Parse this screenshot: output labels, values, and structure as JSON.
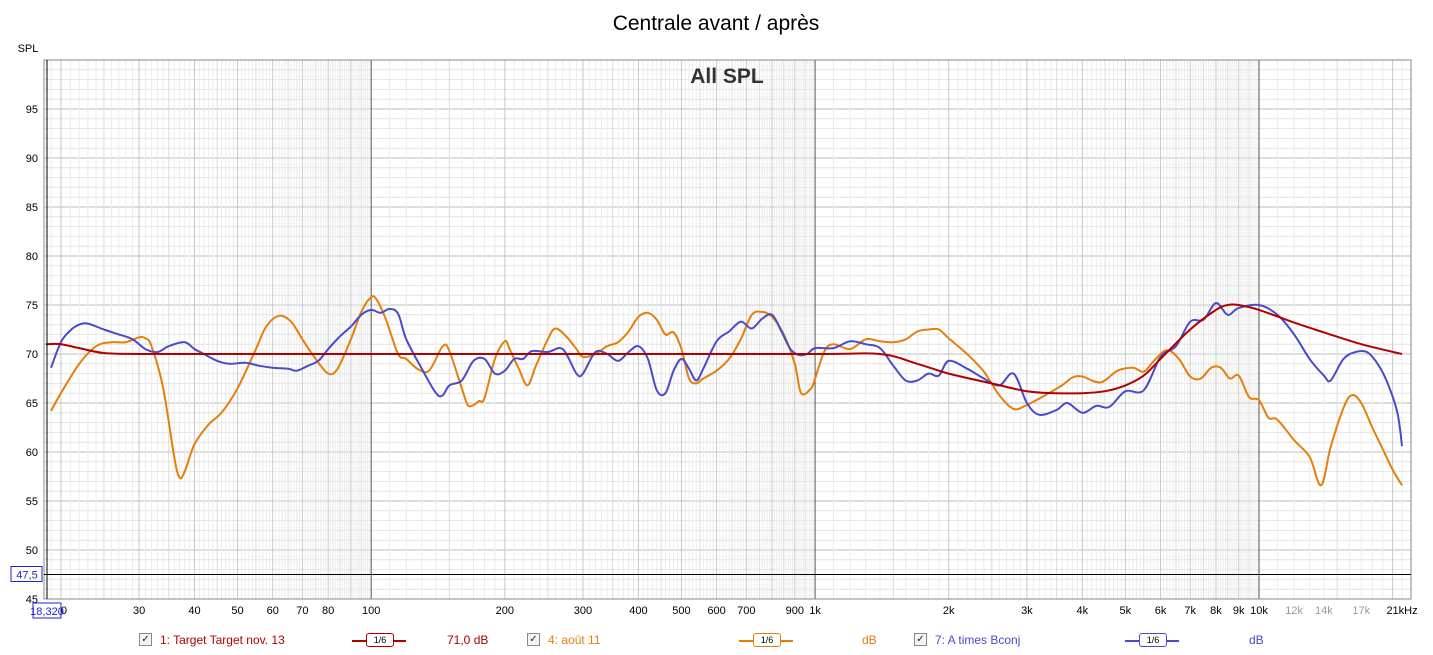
{
  "chart_data": {
    "type": "line",
    "title": "Centrale avant / après",
    "subtitle": "All SPL",
    "ylabel": "SPL",
    "xlabel": "",
    "x_scale": "log",
    "xlim": [
      18.32,
      22000
    ],
    "ylim": [
      45,
      100
    ],
    "y_ticks": [
      45,
      50,
      55,
      60,
      65,
      70,
      75,
      80,
      85,
      90,
      95
    ],
    "x_ticks": [
      {
        "v": 20,
        "label": "20"
      },
      {
        "v": 30,
        "label": "30"
      },
      {
        "v": 40,
        "label": "40"
      },
      {
        "v": 50,
        "label": "50"
      },
      {
        "v": 60,
        "label": "60"
      },
      {
        "v": 70,
        "label": "70"
      },
      {
        "v": 80,
        "label": "80"
      },
      {
        "v": 100,
        "label": "100"
      },
      {
        "v": 200,
        "label": "200"
      },
      {
        "v": 300,
        "label": "300"
      },
      {
        "v": 400,
        "label": "400"
      },
      {
        "v": 500,
        "label": "500"
      },
      {
        "v": 600,
        "label": "600"
      },
      {
        "v": 700,
        "label": "700"
      },
      {
        "v": 900,
        "label": "900"
      },
      {
        "v": 1000,
        "label": "1k"
      },
      {
        "v": 2000,
        "label": "2k"
      },
      {
        "v": 3000,
        "label": "3k"
      },
      {
        "v": 4000,
        "label": "4k"
      },
      {
        "v": 5000,
        "label": "5k"
      },
      {
        "v": 6000,
        "label": "6k"
      },
      {
        "v": 7000,
        "label": "7k"
      },
      {
        "v": 8000,
        "label": "8k"
      },
      {
        "v": 9000,
        "label": "9k"
      },
      {
        "v": 10000,
        "label": "10k"
      },
      {
        "v": 12000,
        "label": "12k"
      },
      {
        "v": 14000,
        "label": "14k"
      },
      {
        "v": 17000,
        "label": "17k"
      },
      {
        "v": 21000,
        "label": "21kHz"
      }
    ],
    "cursor_y": {
      "value": 47.5,
      "label": "47,5"
    },
    "cursor_x": {
      "label": "18,320"
    },
    "grid": true,
    "series": [
      {
        "name": "1: Target Target nov. 13",
        "color": "#b00000",
        "points": [
          [
            18.5,
            71
          ],
          [
            20,
            71
          ],
          [
            22,
            70.6
          ],
          [
            25,
            70.1
          ],
          [
            30,
            70
          ],
          [
            50,
            70
          ],
          [
            100,
            70
          ],
          [
            300,
            70
          ],
          [
            1000,
            70
          ],
          [
            1400,
            70
          ],
          [
            1700,
            69
          ],
          [
            2000,
            68
          ],
          [
            2500,
            67
          ],
          [
            3000,
            66.2
          ],
          [
            3500,
            66
          ],
          [
            4000,
            66
          ],
          [
            4500,
            66.2
          ],
          [
            5000,
            66.8
          ],
          [
            5500,
            67.8
          ],
          [
            6000,
            69.5
          ],
          [
            7000,
            72.5
          ],
          [
            8000,
            74.5
          ],
          [
            8500,
            75
          ],
          [
            9000,
            75
          ],
          [
            10000,
            74.5
          ],
          [
            12000,
            73.2
          ],
          [
            14000,
            72.2
          ],
          [
            17000,
            71
          ],
          [
            21000,
            70
          ]
        ]
      },
      {
        "name": "4: août 11",
        "color": "#e67e0a",
        "points": [
          [
            19,
            64.2
          ],
          [
            20,
            66
          ],
          [
            22,
            69
          ],
          [
            24,
            70.8
          ],
          [
            26,
            71.2
          ],
          [
            28,
            71.2
          ],
          [
            30,
            71.7
          ],
          [
            31,
            71.6
          ],
          [
            32,
            70.8
          ],
          [
            34,
            66.5
          ],
          [
            36,
            59.5
          ],
          [
            37,
            57.4
          ],
          [
            38,
            58
          ],
          [
            40,
            60.8
          ],
          [
            43,
            62.8
          ],
          [
            46,
            64
          ],
          [
            50,
            66.5
          ],
          [
            55,
            70.5
          ],
          [
            58,
            72.8
          ],
          [
            62,
            73.9
          ],
          [
            66,
            73.3
          ],
          [
            70,
            71.5
          ],
          [
            75,
            69.5
          ],
          [
            80,
            68
          ],
          [
            84,
            68.5
          ],
          [
            90,
            71.5
          ],
          [
            95,
            74.3
          ],
          [
            100,
            75.8
          ],
          [
            103,
            75.5
          ],
          [
            108,
            73.5
          ],
          [
            115,
            70
          ],
          [
            120,
            69.5
          ],
          [
            127,
            68.5
          ],
          [
            135,
            68.3
          ],
          [
            145,
            70.8
          ],
          [
            150,
            70.3
          ],
          [
            160,
            66.5
          ],
          [
            165,
            64.8
          ],
          [
            170,
            64.8
          ],
          [
            175,
            65.2
          ],
          [
            180,
            65.5
          ],
          [
            190,
            69.5
          ],
          [
            200,
            71.3
          ],
          [
            205,
            70.5
          ],
          [
            215,
            68.5
          ],
          [
            225,
            66.8
          ],
          [
            235,
            68.8
          ],
          [
            250,
            71.5
          ],
          [
            260,
            72.6
          ],
          [
            275,
            71.8
          ],
          [
            290,
            70.5
          ],
          [
            300,
            69.7
          ],
          [
            320,
            70
          ],
          [
            340,
            70.8
          ],
          [
            360,
            71.2
          ],
          [
            380,
            72.3
          ],
          [
            400,
            73.8
          ],
          [
            420,
            74.2
          ],
          [
            440,
            73.5
          ],
          [
            460,
            72
          ],
          [
            480,
            72.2
          ],
          [
            500,
            70.5
          ],
          [
            520,
            67.5
          ],
          [
            540,
            67
          ],
          [
            560,
            67.5
          ],
          [
            600,
            68.3
          ],
          [
            640,
            69.5
          ],
          [
            680,
            71.5
          ],
          [
            720,
            74
          ],
          [
            760,
            74.3
          ],
          [
            800,
            73.8
          ],
          [
            850,
            72
          ],
          [
            900,
            69
          ],
          [
            930,
            66
          ],
          [
            980,
            66.5
          ],
          [
            1000,
            67.5
          ],
          [
            1050,
            70.3
          ],
          [
            1100,
            71
          ],
          [
            1200,
            70.5
          ],
          [
            1300,
            71.5
          ],
          [
            1400,
            71.3
          ],
          [
            1500,
            71.2
          ],
          [
            1600,
            71.5
          ],
          [
            1700,
            72.3
          ],
          [
            1800,
            72.5
          ],
          [
            1900,
            72.5
          ],
          [
            2000,
            71.6
          ],
          [
            2200,
            70
          ],
          [
            2400,
            68.2
          ],
          [
            2600,
            65.8
          ],
          [
            2800,
            64.4
          ],
          [
            3000,
            64.8
          ],
          [
            3300,
            65.8
          ],
          [
            3600,
            66.8
          ],
          [
            3800,
            67.6
          ],
          [
            4000,
            67.7
          ],
          [
            4400,
            67.1
          ],
          [
            4800,
            68.3
          ],
          [
            5200,
            68.6
          ],
          [
            5500,
            68.2
          ],
          [
            5800,
            69.3
          ],
          [
            6200,
            70.4
          ],
          [
            6600,
            69.5
          ],
          [
            7000,
            67.7
          ],
          [
            7400,
            67.5
          ],
          [
            7800,
            68.6
          ],
          [
            8200,
            68.6
          ],
          [
            8600,
            67.5
          ],
          [
            9000,
            67.8
          ],
          [
            9500,
            65.6
          ],
          [
            10000,
            65.3
          ],
          [
            10500,
            63.5
          ],
          [
            11000,
            63.3
          ],
          [
            12000,
            61.2
          ],
          [
            13000,
            59.5
          ],
          [
            13800,
            56.6
          ],
          [
            14500,
            60.5
          ],
          [
            15500,
            64.5
          ],
          [
            16200,
            65.8
          ],
          [
            17000,
            65
          ],
          [
            18000,
            62.5
          ],
          [
            19000,
            60.3
          ],
          [
            20000,
            58.2
          ],
          [
            21000,
            56.6
          ]
        ]
      },
      {
        "name": "7: A times Bconj",
        "color": "#4a4acc",
        "points": [
          [
            19,
            68.6
          ],
          [
            20,
            71.2
          ],
          [
            21,
            72.4
          ],
          [
            22,
            73
          ],
          [
            23,
            73.1
          ],
          [
            25,
            72.5
          ],
          [
            27,
            72
          ],
          [
            29,
            71.5
          ],
          [
            31,
            70.5
          ],
          [
            33,
            70.2
          ],
          [
            35,
            70.8
          ],
          [
            38,
            71.2
          ],
          [
            40,
            70.5
          ],
          [
            42,
            70
          ],
          [
            45,
            69.3
          ],
          [
            48,
            69
          ],
          [
            52,
            69.1
          ],
          [
            56,
            68.8
          ],
          [
            60,
            68.6
          ],
          [
            65,
            68.5
          ],
          [
            68,
            68.3
          ],
          [
            72,
            68.8
          ],
          [
            76,
            69.3
          ],
          [
            80,
            70.5
          ],
          [
            85,
            71.8
          ],
          [
            90,
            72.8
          ],
          [
            95,
            74
          ],
          [
            100,
            74.5
          ],
          [
            105,
            74.2
          ],
          [
            110,
            74.6
          ],
          [
            115,
            74.1
          ],
          [
            120,
            71.5
          ],
          [
            130,
            68.5
          ],
          [
            140,
            66
          ],
          [
            145,
            65.8
          ],
          [
            150,
            66.8
          ],
          [
            160,
            67.3
          ],
          [
            170,
            69.3
          ],
          [
            180,
            69.5
          ],
          [
            190,
            68
          ],
          [
            200,
            68.3
          ],
          [
            210,
            69.5
          ],
          [
            220,
            69.5
          ],
          [
            230,
            70.3
          ],
          [
            250,
            70.2
          ],
          [
            270,
            70.5
          ],
          [
            290,
            68
          ],
          [
            300,
            68
          ],
          [
            320,
            70.2
          ],
          [
            340,
            70
          ],
          [
            360,
            69.3
          ],
          [
            380,
            70.2
          ],
          [
            400,
            70.8
          ],
          [
            420,
            69.5
          ],
          [
            440,
            66.3
          ],
          [
            460,
            66
          ],
          [
            480,
            68.3
          ],
          [
            500,
            69.5
          ],
          [
            520,
            68.5
          ],
          [
            540,
            67.3
          ],
          [
            560,
            68.5
          ],
          [
            600,
            71.3
          ],
          [
            640,
            72.3
          ],
          [
            680,
            73.3
          ],
          [
            720,
            72.6
          ],
          [
            760,
            73.6
          ],
          [
            800,
            74
          ],
          [
            840,
            72.3
          ],
          [
            880,
            70.5
          ],
          [
            920,
            69.9
          ],
          [
            960,
            70
          ],
          [
            1000,
            70.6
          ],
          [
            1100,
            70.6
          ],
          [
            1200,
            71.3
          ],
          [
            1300,
            71
          ],
          [
            1400,
            70.6
          ],
          [
            1500,
            68.8
          ],
          [
            1600,
            67.3
          ],
          [
            1700,
            67.3
          ],
          [
            1800,
            68
          ],
          [
            1900,
            67.8
          ],
          [
            2000,
            69.3
          ],
          [
            2200,
            68.5
          ],
          [
            2400,
            67.5
          ],
          [
            2600,
            66.8
          ],
          [
            2800,
            68
          ],
          [
            3000,
            65
          ],
          [
            3200,
            63.8
          ],
          [
            3500,
            64.3
          ],
          [
            3700,
            65
          ],
          [
            4000,
            64
          ],
          [
            4300,
            64.7
          ],
          [
            4600,
            64.6
          ],
          [
            5000,
            66.2
          ],
          [
            5500,
            66.3
          ],
          [
            6000,
            69.7
          ],
          [
            6500,
            70.8
          ],
          [
            7000,
            73.3
          ],
          [
            7500,
            73.5
          ],
          [
            8000,
            75.2
          ],
          [
            8500,
            74
          ],
          [
            9000,
            74.7
          ],
          [
            10000,
            75
          ],
          [
            11000,
            74
          ],
          [
            12000,
            72
          ],
          [
            13000,
            69.5
          ],
          [
            14000,
            67.8
          ],
          [
            14500,
            67.3
          ],
          [
            15500,
            69.5
          ],
          [
            16500,
            70.2
          ],
          [
            17500,
            70.2
          ],
          [
            18500,
            69
          ],
          [
            19500,
            67
          ],
          [
            20500,
            64
          ],
          [
            21000,
            60.6
          ]
        ]
      }
    ]
  },
  "legend": [
    {
      "checked": "✓",
      "label": "1: Target Target nov. 13",
      "smoothing": "1/6",
      "value": "71,0 dB",
      "color": "#b00000"
    },
    {
      "checked": "✓",
      "label": "4: août 11",
      "smoothing": "1/6",
      "value": "dB",
      "color": "#e67e0a"
    },
    {
      "checked": "✓",
      "label": "7: A times Bconj",
      "smoothing": "1/6",
      "value": "dB",
      "color": "#4a4acc"
    }
  ]
}
